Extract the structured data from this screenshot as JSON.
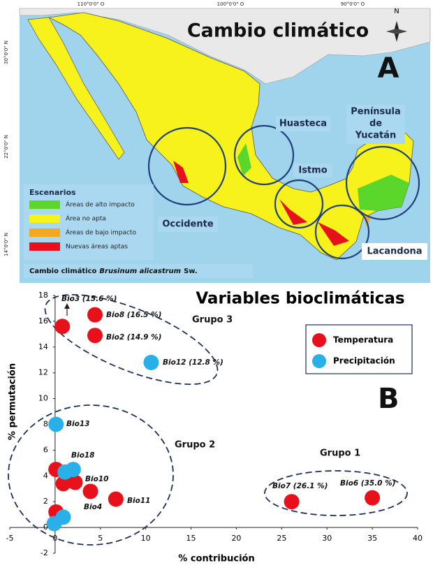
{
  "map": {
    "title": "Cambio climático",
    "panel": "A",
    "north": "N",
    "lon_labels": [
      "110°0'0\" O",
      "100°0'0\" O",
      "90°0'0\" O"
    ],
    "lat_labels": [
      "30°0'0\" N",
      "22°0'0\" N",
      "14°0'0\" N"
    ],
    "regions": [
      "Huasteca",
      "Península",
      "de",
      "Yucatán",
      "Istmo",
      "Occidente",
      "Lacandona"
    ],
    "legend": {
      "title": "Escenarios",
      "items": [
        {
          "label": "Áreas de alto impacto",
          "color": "#5bd62a"
        },
        {
          "label": "Área no apta",
          "color": "#f7f21c"
        },
        {
          "label": "Áreas de bajo impacto",
          "color": "#f5a623"
        },
        {
          "label": "Nuevas áreas aptas",
          "color": "#e8101a"
        }
      ]
    },
    "footer": {
      "lead": "Cambio climático",
      "species": "Brusinum alicastrum",
      "author": "Sw."
    }
  },
  "chart_data": {
    "type": "scatter",
    "title": "Variables bioclimáticas",
    "xlabel": "% contribución",
    "ylabel": "% permutación",
    "xlim": [
      -5,
      40
    ],
    "xticks": [
      -5,
      0,
      5,
      10,
      15,
      20,
      25,
      30,
      35,
      40
    ],
    "ylim": [
      -2,
      18
    ],
    "yticks": [
      -2,
      0,
      2,
      4,
      6,
      8,
      10,
      12,
      14,
      16,
      18
    ],
    "legend": "upper right",
    "series": [
      {
        "name": "Temperatura",
        "color": "#e8101a",
        "x": [
          0.8,
          4.4,
          4.4,
          0.1,
          0.9,
          2.2,
          3.9,
          6.7,
          0.1,
          26.1,
          35.0
        ],
        "values": [
          15.6,
          16.5,
          14.9,
          4.5,
          3.4,
          3.5,
          2.8,
          2.2,
          1.2,
          2.0,
          2.3
        ]
      },
      {
        "name": "Precipitación",
        "color": "#2ab0e8",
        "x": [
          10.6,
          0.1,
          1.1,
          2.0,
          0.9,
          -0.1
        ],
        "values": [
          12.8,
          8.0,
          4.3,
          4.5,
          0.8,
          0.3
        ]
      }
    ],
    "point_labels": [
      "Bio3 (15.6 %)",
      "Bio8 (16.5 %)",
      "Bio2 (14.9 %)",
      "Bio12 (12.8 %)",
      "Bio13",
      "Bio18",
      "Bio10",
      "Bio4",
      "Bio11",
      "Bio7 (26.1 %)",
      "Bio6 (35.0 %)"
    ],
    "annotations": [
      "Grupo 3",
      "Grupo 2",
      "Grupo 1",
      "B"
    ]
  }
}
